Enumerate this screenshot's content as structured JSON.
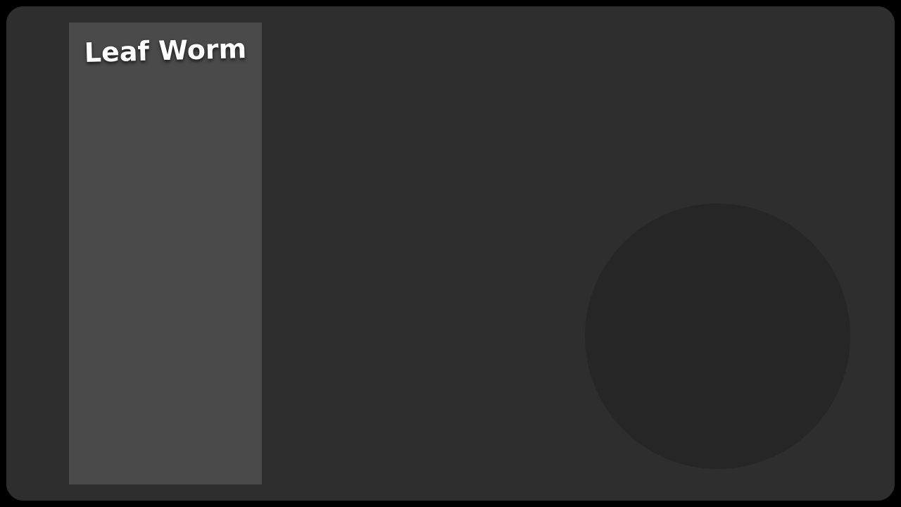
{
  "game": {
    "title": "Leaf Worm"
  },
  "colors": {
    "outer_frame": "#000000",
    "screen_background": "#2e2e2e",
    "side_panel": "#4a4a4a",
    "joystick_area": "#262626",
    "title_text": "#ffffff"
  }
}
